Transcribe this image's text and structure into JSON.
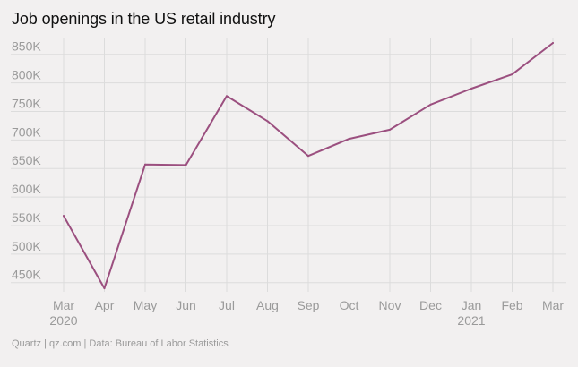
{
  "title": "Job openings in the US retail industry",
  "source": "Quartz | qz.com | Data: Bureau of Labor Statistics",
  "colors": {
    "line": "#9b4f7f",
    "grid": "#dcdcdc",
    "tick": "#9a9a9a",
    "background": "#f2f0f0"
  },
  "chart_data": {
    "type": "line",
    "title": "Job openings in the US retail industry",
    "xlabel": "",
    "ylabel": "",
    "x": [
      "Mar",
      "Apr",
      "May",
      "Jun",
      "Jul",
      "Aug",
      "Sep",
      "Oct",
      "Nov",
      "Dec",
      "Jan",
      "Feb",
      "Mar"
    ],
    "x_year_labels": [
      "2020",
      "",
      "",
      "",
      "",
      "",
      "",
      "",
      "",
      "",
      "2021",
      "",
      ""
    ],
    "y_ticks": [
      450000,
      500000,
      550000,
      600000,
      650000,
      700000,
      750000,
      800000,
      850000
    ],
    "y_tick_labels": [
      "450K",
      "500K",
      "550K",
      "600K",
      "650K",
      "700K",
      "750K",
      "800K",
      "850K"
    ],
    "ylim": [
      437000,
      870000
    ],
    "grid": true,
    "legend": "none",
    "series": [
      {
        "values": [
          567000,
          440000,
          657000,
          656000,
          777000,
          733000,
          672000,
          702000,
          718000,
          762000,
          790000,
          815000,
          870000
        ]
      }
    ]
  }
}
